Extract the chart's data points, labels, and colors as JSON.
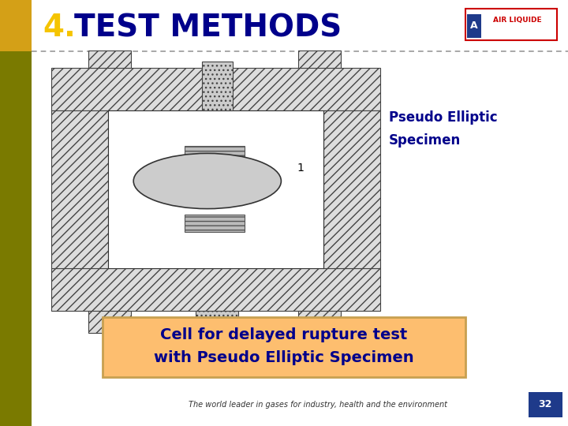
{
  "title_number": "4.",
  "title_text": "TEST METHODS",
  "title_number_color": "#F5C400",
  "title_text_color": "#00008B",
  "header_bg_color": "#FFFFFF",
  "left_bar_top_color": "#D4A017",
  "left_bar_bot_color": "#7A7A00",
  "left_bar_width": 0.055,
  "dashed_line_color": "#999999",
  "annotation_label": "1",
  "annotation_text_line1": "Pseudo Elliptic",
  "annotation_text_line2": "Specimen",
  "annotation_color": "#00008B",
  "box_text_line1": "Cell for delayed rupture test",
  "box_text_line2": "with Pseudo Elliptic Specimen",
  "box_bg_color": "#FDBE6F",
  "box_border_color": "#C8A050",
  "box_text_color": "#00008B",
  "footer_text": "The world leader in gases for industry, health and the environment",
  "footer_text_color": "#333333",
  "page_number": "32",
  "page_number_bg": "#1E3A8A",
  "page_number_color": "#FFFFFF",
  "bg_color": "#FFFFFF",
  "air_liquide_box_color": "#CC0000",
  "hatch_face_color": "#DDDDDD",
  "hatch_edge_color": "#444444"
}
